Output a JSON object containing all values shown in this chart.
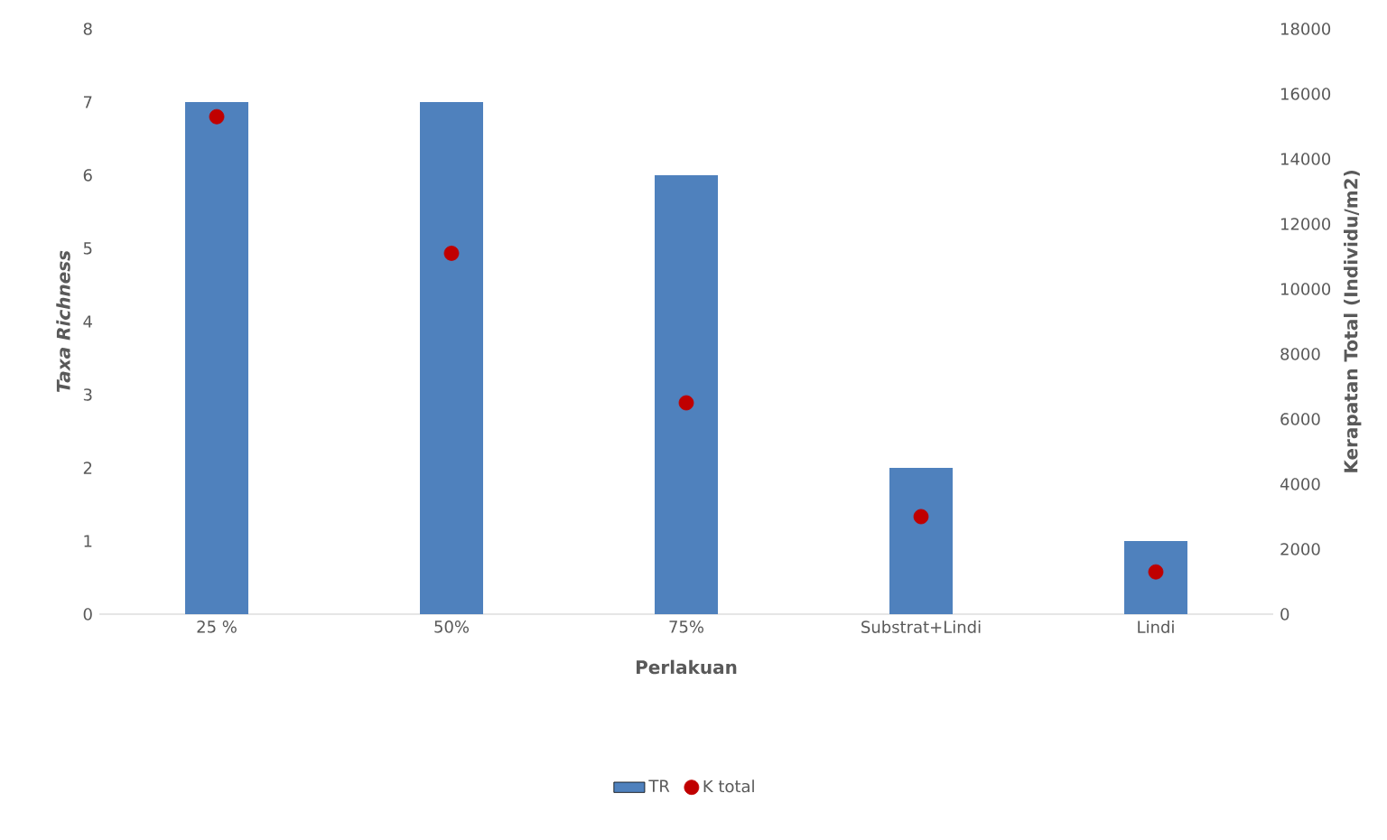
{
  "chart_data": {
    "type": "bar",
    "xlabel": "Perlakuan",
    "ylabel": "*Taxa Richness*",
    "y2label": "Kerapatan Total (Individu/m2)",
    "categories": [
      "25 %",
      "50%",
      "75%",
      "Substrat+Lindi",
      "Lindi"
    ],
    "series": [
      {
        "name": "TR",
        "color": "#4f81bd",
        "values": [
          7,
          7,
          6,
          2,
          1
        ]
      },
      {
        "name": "K total",
        "type": "scatter",
        "axis": "y2",
        "color": "#c00000",
        "values": [
          15300,
          11100,
          6500,
          3000,
          1300
        ]
      }
    ],
    "ylim": [
      0,
      8
    ],
    "yticks": [
      0,
      1,
      2,
      3,
      4,
      5,
      6,
      7,
      8
    ],
    "y2lim": [
      0,
      18000
    ],
    "y2ticks": [
      0,
      2000,
      4000,
      6000,
      8000,
      10000,
      12000,
      14000,
      16000,
      18000
    ],
    "legend": "bottom",
    "grid": false
  }
}
